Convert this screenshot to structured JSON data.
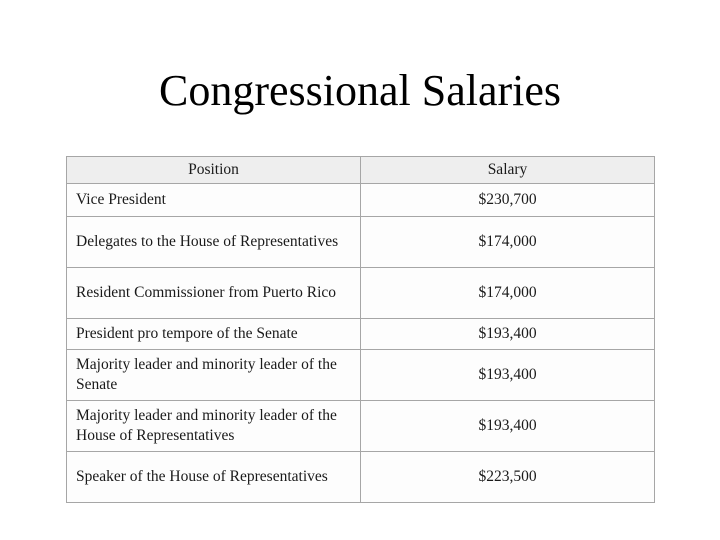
{
  "slide": {
    "title": "Congressional Salaries",
    "background_color": "#ffffff",
    "text_color": "#1a1a1a"
  },
  "table": {
    "header_bg_color": "#eeeeee",
    "border_color": "#a6a6a6",
    "columns": [
      "Position",
      "Salary"
    ],
    "rows": [
      {
        "position": "Vice President",
        "salary": "$230,700"
      },
      {
        "position": "Delegates to the House of Representatives",
        "salary": "$174,000"
      },
      {
        "position": "Resident Commissioner from Puerto Rico",
        "salary": "$174,000"
      },
      {
        "position": "President pro tempore of the Senate",
        "salary": "$193,400"
      },
      {
        "position": "Majority leader and minority leader of the Senate",
        "salary": "$193,400"
      },
      {
        "position": "Majority leader and minority leader of the House of Representatives",
        "salary": "$193,400"
      },
      {
        "position": "Speaker of the House of Representatives",
        "salary": "$223,500"
      }
    ]
  }
}
